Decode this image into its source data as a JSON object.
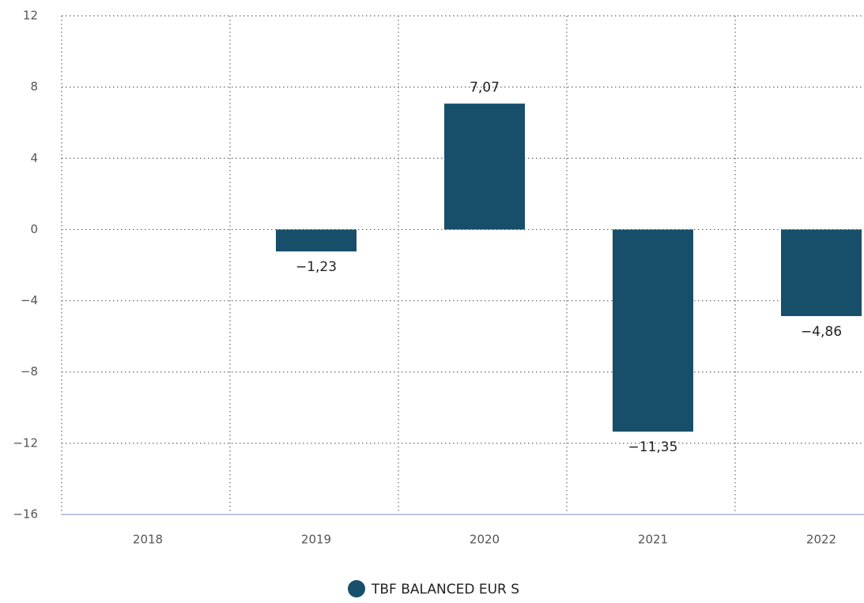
{
  "chart_data": {
    "type": "bar",
    "categories": [
      "2018",
      "2019",
      "2020",
      "2021",
      "2022"
    ],
    "series": [
      {
        "name": "TBF BALANCED EUR S",
        "color": "#174f6b",
        "values": [
          null,
          -1.23,
          7.07,
          -11.35,
          -4.86
        ],
        "value_labels": [
          null,
          "−1,23",
          "7,07",
          "−11,35",
          "−4,86"
        ]
      }
    ],
    "ylim": [
      -16,
      12
    ],
    "yticks": [
      12,
      8,
      4,
      0,
      {
        "value": -4,
        "label": "−4"
      },
      {
        "value": -8,
        "label": "−8"
      },
      {
        "value": -12,
        "label": "−12"
      },
      {
        "value": -16,
        "label": "−16"
      }
    ],
    "grid": true
  }
}
